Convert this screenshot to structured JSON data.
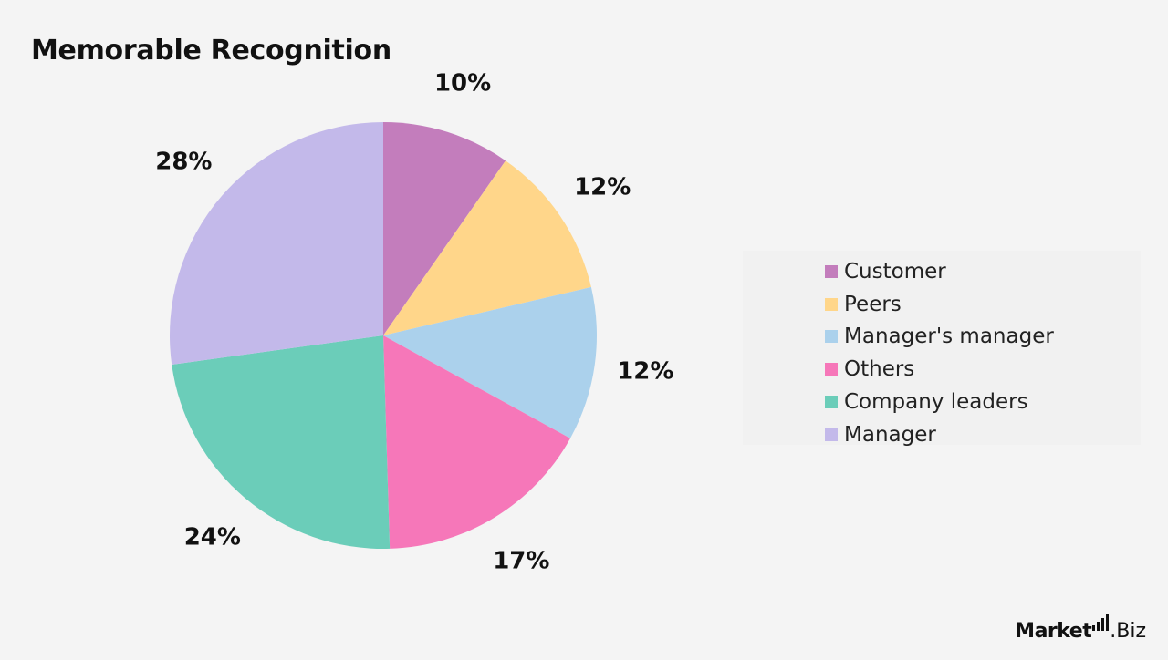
{
  "title": "Memorable Recognition",
  "brand": {
    "name_left": "Market",
    "name_right": ".Biz"
  },
  "chart_data": {
    "type": "pie",
    "title": "Memorable Recognition",
    "legend_position": "right",
    "unit": "%",
    "slices": [
      {
        "name": "Customer",
        "value": 10,
        "label": "10%",
        "color": "#c37dbc"
      },
      {
        "name": "Peers",
        "value": 12,
        "label": "12%",
        "color": "#ffd68a"
      },
      {
        "name": "Manager's manager",
        "value": 12,
        "label": "12%",
        "color": "#abd1ec"
      },
      {
        "name": "Others",
        "value": 17,
        "label": "17%",
        "color": "#f677b9"
      },
      {
        "name": "Company leaders",
        "value": 24,
        "label": "24%",
        "color": "#6bcdb9"
      },
      {
        "name": "Manager",
        "value": 28,
        "label": "28%",
        "color": "#c3b9ea"
      }
    ]
  }
}
